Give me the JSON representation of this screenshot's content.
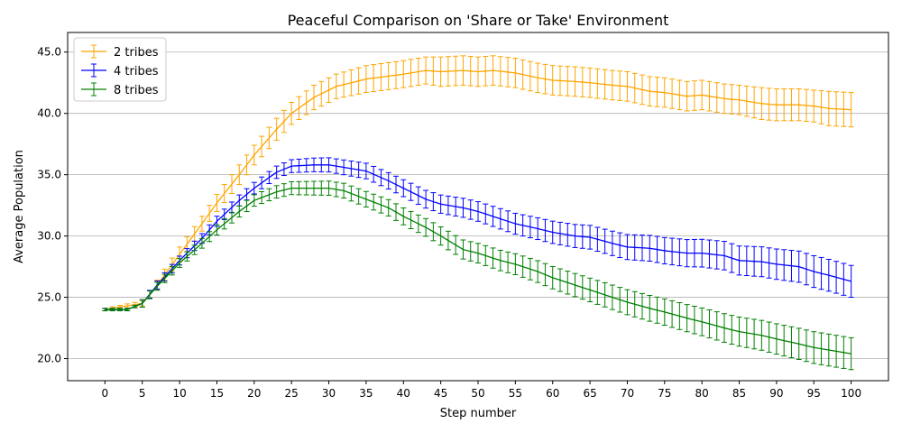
{
  "chart_data": {
    "type": "line",
    "title": "Peaceful Comparison on 'Share or Take' Environment",
    "xlabel": "Step number",
    "ylabel": "Average Population",
    "xlim": [
      -5,
      105
    ],
    "ylim": [
      18.2,
      46.6
    ],
    "xticks": [
      0,
      5,
      10,
      15,
      20,
      25,
      30,
      35,
      40,
      45,
      50,
      55,
      60,
      65,
      70,
      75,
      80,
      85,
      90,
      95,
      100
    ],
    "yticks": [
      20.0,
      25.0,
      30.0,
      35.0,
      40.0,
      45.0
    ],
    "ytick_labels": [
      "20.0",
      "25.0",
      "30.0",
      "35.0",
      "40.0",
      "45.0"
    ],
    "grid": "horizontal",
    "legend_position": "top-left",
    "error_bars": true,
    "series": [
      {
        "name": "2 tribes",
        "color": "#FFA500",
        "x": [
          0,
          5,
          7,
          10,
          13,
          15,
          18,
          20,
          23,
          25,
          28,
          31,
          35,
          40,
          43,
          45,
          48,
          50,
          52,
          55,
          58,
          60,
          63,
          65,
          68,
          70,
          73,
          75,
          78,
          80,
          83,
          85,
          88,
          90,
          93,
          95,
          97,
          100
        ],
        "y": [
          24.0,
          24.5,
          26.0,
          28.5,
          31.0,
          32.7,
          35.0,
          36.6,
          38.7,
          40.0,
          41.3,
          42.2,
          42.8,
          43.2,
          43.5,
          43.4,
          43.5,
          43.4,
          43.5,
          43.3,
          42.9,
          42.7,
          42.6,
          42.5,
          42.3,
          42.2,
          41.8,
          41.7,
          41.4,
          41.5,
          41.2,
          41.1,
          40.8,
          40.7,
          40.7,
          40.6,
          40.4,
          40.3
        ],
        "err": [
          0.1,
          0.2,
          0.4,
          0.6,
          0.6,
          0.7,
          0.8,
          0.8,
          0.9,
          0.9,
          1.0,
          1.0,
          1.1,
          1.1,
          1.1,
          1.2,
          1.2,
          1.2,
          1.2,
          1.2,
          1.2,
          1.2,
          1.2,
          1.2,
          1.2,
          1.2,
          1.2,
          1.2,
          1.2,
          1.2,
          1.2,
          1.2,
          1.3,
          1.3,
          1.3,
          1.3,
          1.4,
          1.4
        ]
      },
      {
        "name": "4 tribes",
        "color": "#0000FF",
        "x": [
          0,
          3,
          5,
          7,
          10,
          13,
          15,
          18,
          20,
          23,
          25,
          28,
          30,
          32,
          35,
          38,
          40,
          43,
          45,
          48,
          50,
          53,
          55,
          58,
          60,
          63,
          65,
          68,
          70,
          73,
          75,
          78,
          80,
          83,
          85,
          88,
          90,
          93,
          95,
          97,
          100
        ],
        "y": [
          24.0,
          24.0,
          24.5,
          26.0,
          28.0,
          29.8,
          31.2,
          32.9,
          33.9,
          35.2,
          35.7,
          35.8,
          35.8,
          35.6,
          35.3,
          34.5,
          33.9,
          33.0,
          32.6,
          32.3,
          32.0,
          31.4,
          31.0,
          30.6,
          30.3,
          30.0,
          29.9,
          29.4,
          29.1,
          29.0,
          28.8,
          28.6,
          28.6,
          28.4,
          28.0,
          27.9,
          27.7,
          27.5,
          27.1,
          26.8,
          26.3
        ]
      },
      {
        "name": "8 tribes",
        "color": "#008000",
        "x": [
          0,
          3,
          5,
          7,
          10,
          13,
          15,
          18,
          20,
          23,
          25,
          28,
          30,
          32,
          35,
          38,
          40,
          43,
          45,
          48,
          50,
          53,
          55,
          58,
          60,
          63,
          65,
          68,
          70,
          73,
          75,
          78,
          80,
          83,
          85,
          88,
          90,
          93,
          95,
          97,
          100
        ],
        "y": [
          24.0,
          24.0,
          24.5,
          25.9,
          27.8,
          29.4,
          30.5,
          32.0,
          32.9,
          33.6,
          33.9,
          33.9,
          33.9,
          33.7,
          33.0,
          32.3,
          31.6,
          30.7,
          30.0,
          28.9,
          28.6,
          28.0,
          27.7,
          27.1,
          26.6,
          26.0,
          25.6,
          25.0,
          24.6,
          24.1,
          23.8,
          23.3,
          23.0,
          22.5,
          22.2,
          21.9,
          21.6,
          21.2,
          20.9,
          20.7,
          20.4
        ]
      }
    ]
  }
}
